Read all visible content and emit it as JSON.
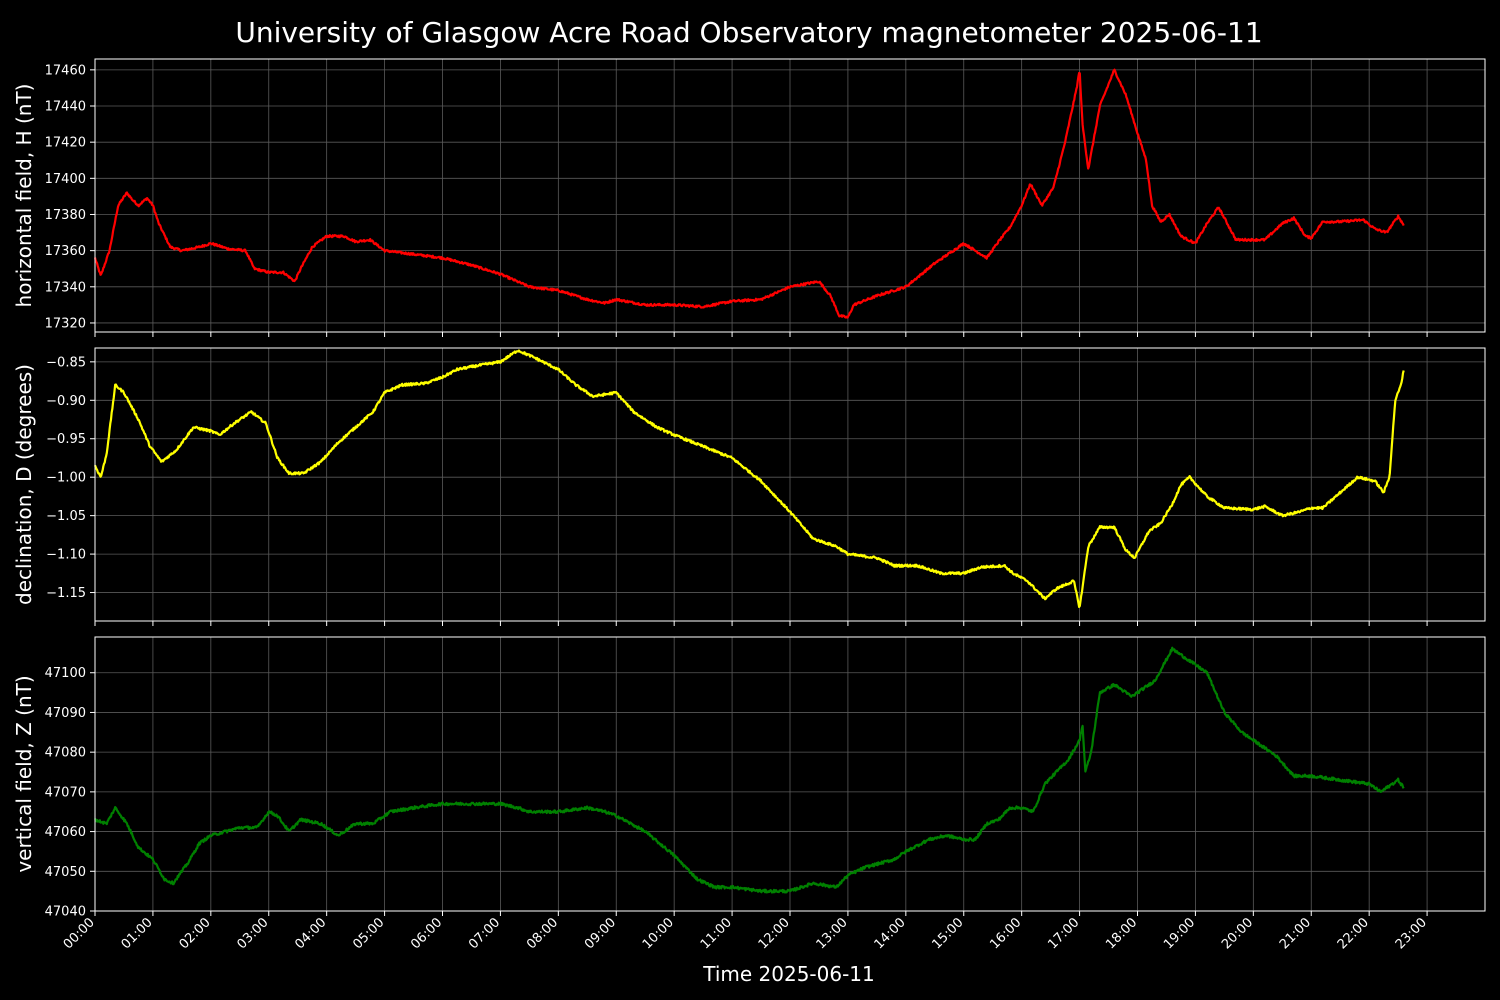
{
  "chart_data": {
    "type": "line",
    "title": "University of Glasgow Acre Road Observatory magnetometer 2025-06-11",
    "xlabel": "Time 2025-06-11",
    "x_unit": "hours",
    "xlim": [
      0,
      24
    ],
    "x_tick_labels": [
      "00:00",
      "01:00",
      "02:00",
      "03:00",
      "04:00",
      "05:00",
      "06:00",
      "07:00",
      "08:00",
      "09:00",
      "10:00",
      "11:00",
      "12:00",
      "13:00",
      "14:00",
      "15:00",
      "16:00",
      "17:00",
      "18:00",
      "19:00",
      "20:00",
      "21:00",
      "22:00",
      "23:00"
    ],
    "grid": true,
    "panels": [
      {
        "ylabel": "horizontal field, H (nT)",
        "color": "#ff0000",
        "ylim": [
          17315,
          17466
        ],
        "yticks": [
          17320,
          17340,
          17360,
          17380,
          17400,
          17420,
          17440,
          17460
        ],
        "tick_decimals": 0,
        "noise": 0.6,
        "points": [
          [
            0,
            17356
          ],
          [
            0.1,
            17346
          ],
          [
            0.25,
            17360
          ],
          [
            0.4,
            17385
          ],
          [
            0.55,
            17392
          ],
          [
            0.65,
            17388
          ],
          [
            0.75,
            17385
          ],
          [
            0.9,
            17389
          ],
          [
            1.0,
            17385
          ],
          [
            1.1,
            17375
          ],
          [
            1.3,
            17362
          ],
          [
            1.5,
            17360
          ],
          [
            1.8,
            17362
          ],
          [
            2.0,
            17364
          ],
          [
            2.3,
            17361
          ],
          [
            2.6,
            17360
          ],
          [
            2.75,
            17350
          ],
          [
            3.0,
            17348
          ],
          [
            3.25,
            17348
          ],
          [
            3.45,
            17343
          ],
          [
            3.55,
            17350
          ],
          [
            3.75,
            17362
          ],
          [
            4.0,
            17368
          ],
          [
            4.3,
            17368
          ],
          [
            4.5,
            17365
          ],
          [
            4.75,
            17366
          ],
          [
            5.0,
            17360
          ],
          [
            5.5,
            17358
          ],
          [
            6.0,
            17356
          ],
          [
            6.5,
            17352
          ],
          [
            7.0,
            17347
          ],
          [
            7.5,
            17340
          ],
          [
            8.0,
            17338
          ],
          [
            8.5,
            17333
          ],
          [
            8.8,
            17331
          ],
          [
            9.0,
            17333
          ],
          [
            9.5,
            17330
          ],
          [
            10.0,
            17330
          ],
          [
            10.5,
            17329
          ],
          [
            11.0,
            17332
          ],
          [
            11.5,
            17333
          ],
          [
            12.0,
            17340
          ],
          [
            12.5,
            17343
          ],
          [
            12.7,
            17335
          ],
          [
            12.85,
            17324
          ],
          [
            13.0,
            17323
          ],
          [
            13.1,
            17330
          ],
          [
            13.5,
            17335
          ],
          [
            14.0,
            17340
          ],
          [
            14.5,
            17353
          ],
          [
            15.0,
            17364
          ],
          [
            15.2,
            17360
          ],
          [
            15.4,
            17356
          ],
          [
            15.6,
            17365
          ],
          [
            15.8,
            17373
          ],
          [
            16.0,
            17385
          ],
          [
            16.15,
            17397
          ],
          [
            16.35,
            17385
          ],
          [
            16.55,
            17395
          ],
          [
            16.75,
            17420
          ],
          [
            16.95,
            17450
          ],
          [
            17.0,
            17460
          ],
          [
            17.05,
            17430
          ],
          [
            17.15,
            17405
          ],
          [
            17.35,
            17440
          ],
          [
            17.6,
            17460
          ],
          [
            17.8,
            17446
          ],
          [
            18.0,
            17425
          ],
          [
            18.15,
            17410
          ],
          [
            18.25,
            17385
          ],
          [
            18.4,
            17376
          ],
          [
            18.55,
            17380
          ],
          [
            18.75,
            17368
          ],
          [
            19.0,
            17364
          ],
          [
            19.2,
            17375
          ],
          [
            19.4,
            17384
          ],
          [
            19.7,
            17366
          ],
          [
            20.0,
            17366
          ],
          [
            20.2,
            17366
          ],
          [
            20.5,
            17375
          ],
          [
            20.7,
            17378
          ],
          [
            20.9,
            17368
          ],
          [
            21.0,
            17367
          ],
          [
            21.2,
            17376
          ],
          [
            21.5,
            17376
          ],
          [
            21.9,
            17377
          ],
          [
            22.1,
            17372
          ],
          [
            22.3,
            17370
          ],
          [
            22.5,
            17379
          ],
          [
            22.6,
            17374
          ]
        ]
      },
      {
        "ylabel": "declination, D (degrees)",
        "color": "#ffff00",
        "ylim": [
          -1.187,
          -0.832
        ],
        "yticks": [
          -1.15,
          -1.1,
          -1.05,
          -1.0,
          -0.95,
          -0.9,
          -0.85
        ],
        "tick_decimals": 2,
        "noise": 0.0015,
        "points": [
          [
            0,
            -0.985
          ],
          [
            0.1,
            -1.0
          ],
          [
            0.2,
            -0.97
          ],
          [
            0.35,
            -0.88
          ],
          [
            0.5,
            -0.89
          ],
          [
            0.75,
            -0.925
          ],
          [
            0.95,
            -0.96
          ],
          [
            1.15,
            -0.98
          ],
          [
            1.4,
            -0.965
          ],
          [
            1.7,
            -0.935
          ],
          [
            2.0,
            -0.94
          ],
          [
            2.15,
            -0.945
          ],
          [
            2.4,
            -0.93
          ],
          [
            2.7,
            -0.915
          ],
          [
            2.95,
            -0.93
          ],
          [
            3.15,
            -0.975
          ],
          [
            3.35,
            -0.995
          ],
          [
            3.6,
            -0.995
          ],
          [
            3.9,
            -0.98
          ],
          [
            4.2,
            -0.955
          ],
          [
            4.5,
            -0.935
          ],
          [
            4.8,
            -0.915
          ],
          [
            5.0,
            -0.89
          ],
          [
            5.3,
            -0.88
          ],
          [
            5.7,
            -0.878
          ],
          [
            6.0,
            -0.87
          ],
          [
            6.25,
            -0.86
          ],
          [
            6.6,
            -0.855
          ],
          [
            7.0,
            -0.85
          ],
          [
            7.3,
            -0.835
          ],
          [
            7.6,
            -0.845
          ],
          [
            8.0,
            -0.86
          ],
          [
            8.3,
            -0.88
          ],
          [
            8.6,
            -0.895
          ],
          [
            9.0,
            -0.89
          ],
          [
            9.3,
            -0.915
          ],
          [
            9.7,
            -0.935
          ],
          [
            10.0,
            -0.945
          ],
          [
            10.5,
            -0.96
          ],
          [
            11.0,
            -0.975
          ],
          [
            11.5,
            -1.005
          ],
          [
            12.0,
            -1.045
          ],
          [
            12.4,
            -1.08
          ],
          [
            12.8,
            -1.09
          ],
          [
            13.0,
            -1.1
          ],
          [
            13.5,
            -1.105
          ],
          [
            13.8,
            -1.115
          ],
          [
            14.2,
            -1.115
          ],
          [
            14.6,
            -1.125
          ],
          [
            15.0,
            -1.125
          ],
          [
            15.3,
            -1.117
          ],
          [
            15.7,
            -1.115
          ],
          [
            15.85,
            -1.125
          ],
          [
            16.1,
            -1.135
          ],
          [
            16.4,
            -1.158
          ],
          [
            16.6,
            -1.145
          ],
          [
            16.9,
            -1.135
          ],
          [
            17.0,
            -1.17
          ],
          [
            17.15,
            -1.09
          ],
          [
            17.35,
            -1.065
          ],
          [
            17.6,
            -1.065
          ],
          [
            17.8,
            -1.095
          ],
          [
            17.95,
            -1.105
          ],
          [
            18.2,
            -1.07
          ],
          [
            18.4,
            -1.06
          ],
          [
            18.6,
            -1.035
          ],
          [
            18.75,
            -1.01
          ],
          [
            18.9,
            -1.0
          ],
          [
            19.2,
            -1.025
          ],
          [
            19.5,
            -1.04
          ],
          [
            20.0,
            -1.042
          ],
          [
            20.2,
            -1.038
          ],
          [
            20.5,
            -1.05
          ],
          [
            20.8,
            -1.045
          ],
          [
            21.0,
            -1.04
          ],
          [
            21.2,
            -1.04
          ],
          [
            21.5,
            -1.02
          ],
          [
            21.8,
            -1.0
          ],
          [
            22.1,
            -1.005
          ],
          [
            22.25,
            -1.02
          ],
          [
            22.35,
            -1.0
          ],
          [
            22.45,
            -0.9
          ],
          [
            22.55,
            -0.88
          ],
          [
            22.6,
            -0.858
          ]
        ]
      },
      {
        "ylabel": "vertical field, Z (nT)",
        "color": "#008000",
        "ylim": [
          47040,
          47109
        ],
        "yticks": [
          47040,
          47050,
          47060,
          47070,
          47080,
          47090,
          47100
        ],
        "tick_decimals": 0,
        "noise": 0.35,
        "points": [
          [
            0,
            47063
          ],
          [
            0.2,
            47062
          ],
          [
            0.35,
            47066
          ],
          [
            0.55,
            47062
          ],
          [
            0.75,
            47056
          ],
          [
            1.0,
            47053
          ],
          [
            1.2,
            47048
          ],
          [
            1.35,
            47047
          ],
          [
            1.6,
            47052
          ],
          [
            1.8,
            47057
          ],
          [
            2.0,
            47059
          ],
          [
            2.5,
            47061
          ],
          [
            2.8,
            47061
          ],
          [
            3.0,
            47065
          ],
          [
            3.15,
            47064
          ],
          [
            3.35,
            47060
          ],
          [
            3.55,
            47063
          ],
          [
            3.9,
            47062
          ],
          [
            4.0,
            47061
          ],
          [
            4.2,
            47059
          ],
          [
            4.5,
            47062
          ],
          [
            4.8,
            47062
          ],
          [
            5.1,
            47065
          ],
          [
            5.5,
            47066
          ],
          [
            6.0,
            47067
          ],
          [
            6.5,
            47067
          ],
          [
            7.0,
            47067
          ],
          [
            7.3,
            47066
          ],
          [
            7.5,
            47065
          ],
          [
            8.0,
            47065
          ],
          [
            8.5,
            47066
          ],
          [
            8.8,
            47065
          ],
          [
            9.0,
            47064
          ],
          [
            9.5,
            47060
          ],
          [
            10.0,
            47054
          ],
          [
            10.4,
            47048
          ],
          [
            10.7,
            47046
          ],
          [
            11.0,
            47046
          ],
          [
            11.5,
            47045
          ],
          [
            12.0,
            47045
          ],
          [
            12.4,
            47047
          ],
          [
            12.8,
            47046
          ],
          [
            13.0,
            47049
          ],
          [
            13.3,
            47051
          ],
          [
            13.8,
            47053
          ],
          [
            14.0,
            47055
          ],
          [
            14.4,
            47058
          ],
          [
            14.7,
            47059
          ],
          [
            15.0,
            47058
          ],
          [
            15.2,
            47058
          ],
          [
            15.4,
            47062
          ],
          [
            15.6,
            47063
          ],
          [
            15.8,
            47066
          ],
          [
            16.0,
            47066
          ],
          [
            16.2,
            47065
          ],
          [
            16.4,
            47072
          ],
          [
            16.6,
            47075
          ],
          [
            16.8,
            47078
          ],
          [
            17.0,
            47083
          ],
          [
            17.05,
            47087
          ],
          [
            17.1,
            47075
          ],
          [
            17.2,
            47080
          ],
          [
            17.35,
            47095
          ],
          [
            17.6,
            47097
          ],
          [
            17.9,
            47094
          ],
          [
            18.1,
            47096
          ],
          [
            18.3,
            47098
          ],
          [
            18.6,
            47106
          ],
          [
            18.9,
            47103
          ],
          [
            19.2,
            47100
          ],
          [
            19.5,
            47090
          ],
          [
            19.8,
            47085
          ],
          [
            20.1,
            47082
          ],
          [
            20.4,
            47079
          ],
          [
            20.7,
            47074
          ],
          [
            21.0,
            47074
          ],
          [
            21.5,
            47073
          ],
          [
            22.0,
            47072
          ],
          [
            22.2,
            47070
          ],
          [
            22.4,
            47072
          ],
          [
            22.5,
            47073
          ],
          [
            22.6,
            47071
          ]
        ]
      }
    ]
  }
}
